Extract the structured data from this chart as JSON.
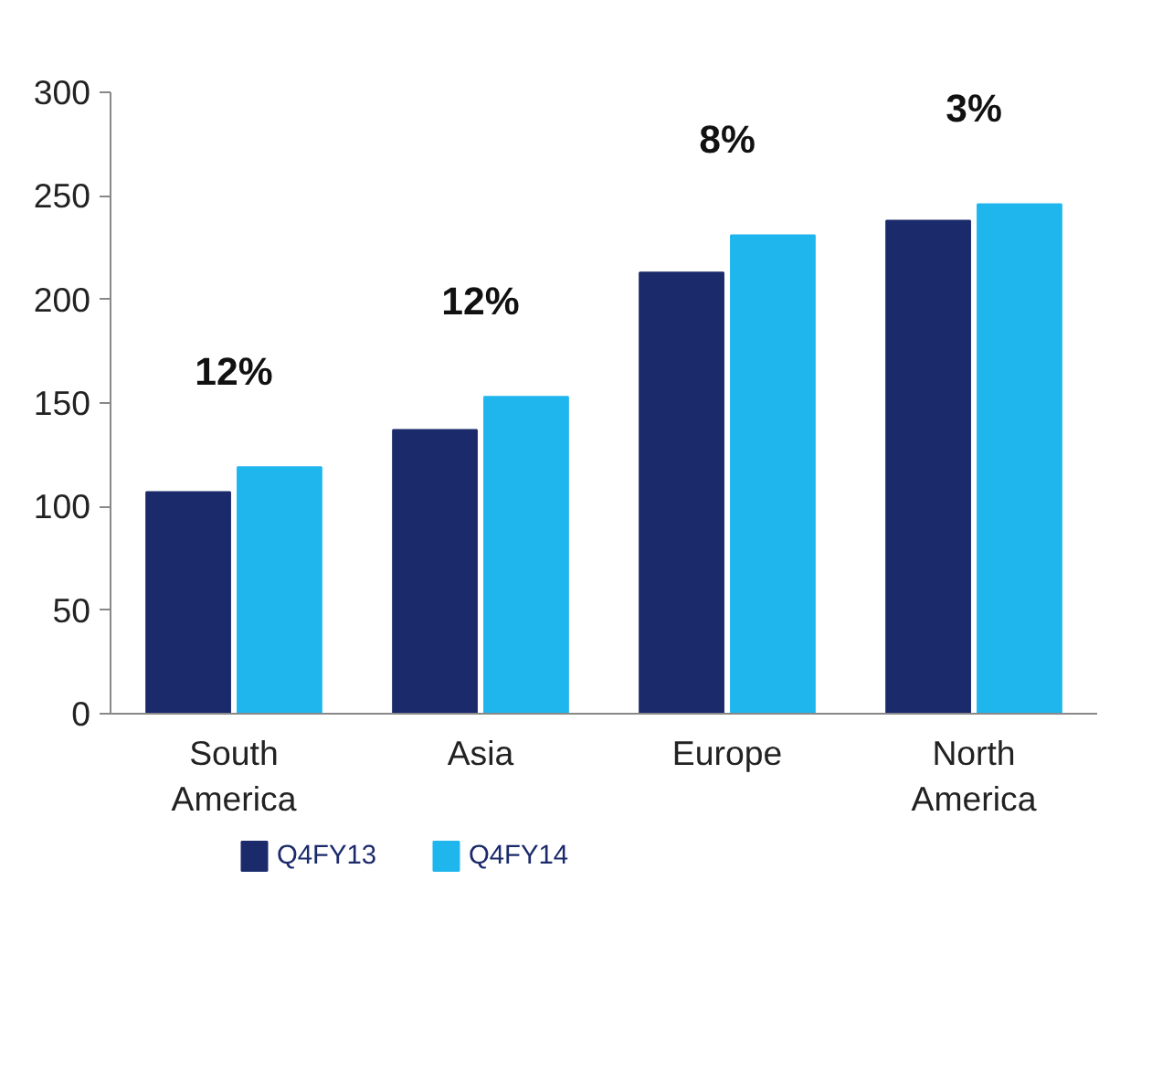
{
  "chart_data": {
    "type": "bar",
    "categories": [
      "South America",
      "Asia",
      "Europe",
      "North America"
    ],
    "series": [
      {
        "name": "Q4FY13",
        "color": "#1b2a6b",
        "values": [
          107,
          137,
          213,
          238
        ]
      },
      {
        "name": "Q4FY14",
        "color": "#1fb6ee",
        "values": [
          119,
          153,
          231,
          246
        ]
      }
    ],
    "ylim": [
      0,
      300
    ],
    "yticks": [
      0,
      50,
      100,
      150,
      200,
      250,
      300
    ],
    "grid": false,
    "legend": "bottom",
    "annotations": [
      "12%",
      "12%",
      "8%",
      "3%"
    ]
  }
}
